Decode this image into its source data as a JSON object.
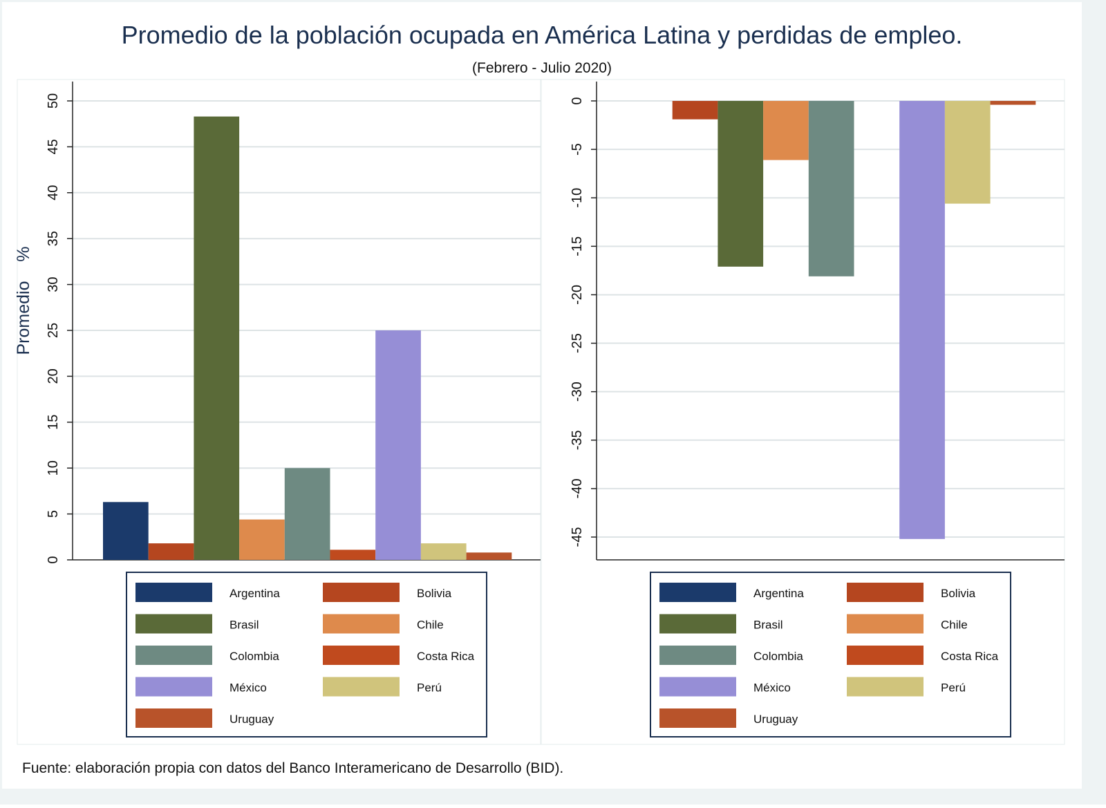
{
  "title": "Promedio de la población ocupada en América Latina y perdidas de empleo.",
  "subtitle": "(Febrero - Julio 2020)",
  "source": "Fuente: elaboración propia con datos del Banco Interamericano de Desarrollo (BID).",
  "colors": {
    "Argentina": "#1b3a6b",
    "Bolivia": "#b5461f",
    "Brasil": "#5a6a38",
    "Chile": "#de8a4c",
    "Colombia": "#6e8a82",
    "Costa Rica": "#c04a1e",
    "México": "#968ed6",
    "Perú": "#d0c47c",
    "Uruguay": "#b8532a"
  },
  "chart_data": [
    {
      "type": "bar",
      "ylabel": "Promedio    %",
      "ylim": [
        0,
        50
      ],
      "yticks": [
        0,
        5,
        10,
        15,
        20,
        25,
        30,
        35,
        40,
        45,
        50
      ],
      "grid": true,
      "legend": "bottom",
      "series": [
        {
          "name": "Argentina",
          "value": 6.3
        },
        {
          "name": "Bolivia",
          "value": 1.8
        },
        {
          "name": "Brasil",
          "value": 48.3
        },
        {
          "name": "Chile",
          "value": 4.4
        },
        {
          "name": "Colombia",
          "value": 10.0
        },
        {
          "name": "Costa Rica",
          "value": 1.1
        },
        {
          "name": "México",
          "value": 25.0
        },
        {
          "name": "Perú",
          "value": 1.8
        },
        {
          "name": "Uruguay",
          "value": 0.8
        }
      ]
    },
    {
      "type": "bar",
      "ylabel": "",
      "ylim": [
        -47.4,
        0
      ],
      "yticks": [
        0,
        -5,
        -10,
        -15,
        -20,
        -25,
        -30,
        -35,
        -40,
        -45
      ],
      "grid": true,
      "legend": "bottom",
      "series": [
        {
          "name": "Argentina",
          "value": 0
        },
        {
          "name": "Bolivia",
          "value": -1.9
        },
        {
          "name": "Brasil",
          "value": -17.1
        },
        {
          "name": "Chile",
          "value": -6.1
        },
        {
          "name": "Colombia",
          "value": -18.1
        },
        {
          "name": "Costa Rica",
          "value": 0
        },
        {
          "name": "México",
          "value": -45.2
        },
        {
          "name": "Perú",
          "value": -10.6
        },
        {
          "name": "Uruguay",
          "value": -0.4
        }
      ]
    }
  ]
}
